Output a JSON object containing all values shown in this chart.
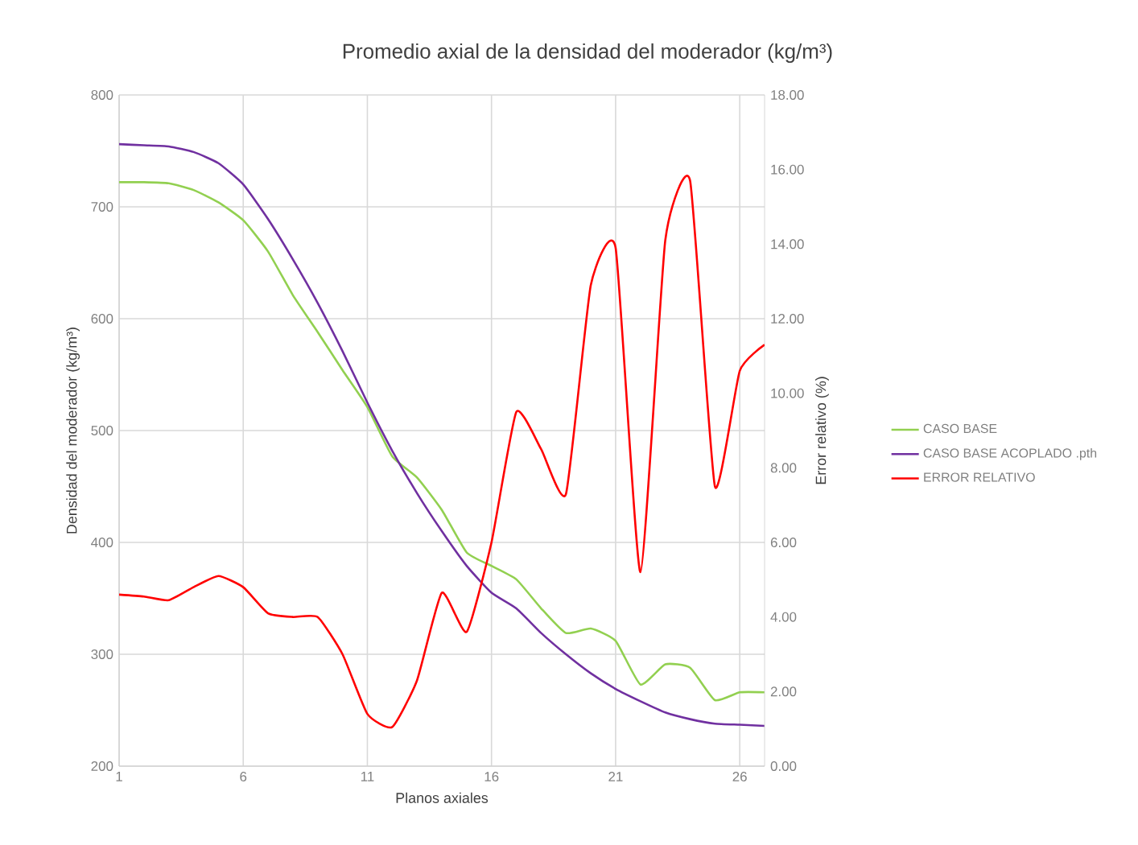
{
  "chart_data": {
    "type": "line",
    "title": "Promedio axial de la densidad del moderador (kg/m³)",
    "xlabel": "Planos axiales",
    "ylabel": "Densidad del moderador (kg/m³)",
    "y2label": "Error relativo (%)",
    "x": [
      1,
      2,
      3,
      4,
      5,
      6,
      7,
      8,
      9,
      10,
      11,
      12,
      13,
      14,
      15,
      16,
      17,
      18,
      19,
      20,
      21,
      22,
      23,
      24,
      25,
      26,
      27
    ],
    "series": [
      {
        "name": "CASO BASE",
        "color": "#92d050",
        "values": [
          722,
          722,
          721,
          715,
          704,
          688,
          660,
          621,
          588,
          554,
          521,
          477,
          458,
          429,
          391,
          379,
          367,
          341,
          319,
          323,
          312,
          273,
          291,
          288,
          259,
          266,
          266
        ]
      },
      {
        "name": "CASO BASE ACOPLADO .pth",
        "color": "#7030a0",
        "values": [
          756,
          755,
          754,
          749,
          739,
          720,
          689,
          653,
          614,
          571,
          525,
          482,
          444,
          410,
          379,
          355,
          341,
          319,
          300,
          283,
          269,
          258,
          248,
          242,
          238,
          237,
          236
        ]
      },
      {
        "name": "ERROR RELATIVO",
        "color": "#ff0000",
        "axis": "y2",
        "values": [
          4.6,
          4.55,
          4.45,
          4.8,
          5.1,
          4.8,
          4.1,
          4.0,
          4.0,
          3.0,
          1.4,
          1.05,
          2.3,
          4.65,
          3.6,
          6.0,
          9.5,
          8.5,
          7.3,
          12.9,
          13.9,
          5.2,
          14.1,
          15.7,
          7.5,
          10.6,
          11.3
        ]
      }
    ],
    "xlim": [
      1,
      27
    ],
    "xticks": [
      1,
      6,
      11,
      16,
      21,
      26
    ],
    "ylim": [
      200,
      800
    ],
    "yticks": [
      200,
      300,
      400,
      500,
      600,
      700,
      800
    ],
    "y2lim": [
      0,
      18
    ],
    "y2ticks": [
      {
        "value": 0,
        "label": "0.00"
      },
      {
        "value": 2,
        "label": "2.00"
      },
      {
        "value": 4,
        "label": "4.00"
      },
      {
        "value": 6,
        "label": "6.00"
      },
      {
        "value": 8,
        "label": "8.00"
      },
      {
        "value": 10,
        "label": "10.00"
      },
      {
        "value": 12,
        "label": "12.00"
      },
      {
        "value": 14,
        "label": "14.00"
      },
      {
        "value": 16,
        "label": "16.00"
      },
      {
        "value": 18,
        "label": "18.00"
      }
    ],
    "grid": true,
    "legend": "right"
  }
}
